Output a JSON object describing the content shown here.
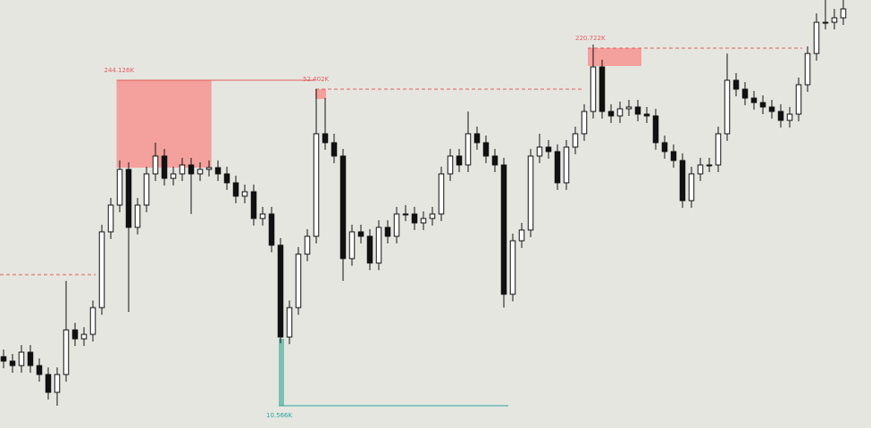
{
  "chart_data": {
    "type": "candlestick",
    "xlim": [
      -0.4,
      97.1
    ],
    "ylim": [
      0,
      480
    ],
    "open": [
      80,
      75,
      70,
      85,
      70,
      60,
      40,
      60,
      110,
      100,
      105,
      135,
      220,
      250,
      290,
      225,
      250,
      285,
      305,
      280,
      285,
      295,
      285,
      290,
      292,
      285,
      275,
      260,
      265,
      235,
      240,
      205,
      102,
      135,
      195,
      215,
      330,
      320,
      305,
      190,
      220,
      215,
      185,
      225,
      215,
      240,
      240,
      230,
      235,
      240,
      285,
      305,
      295,
      330,
      320,
      305,
      295,
      150,
      210,
      222,
      305,
      315,
      310,
      275,
      315,
      330,
      355,
      405,
      355,
      350,
      358,
      360,
      352,
      350,
      320,
      310,
      300,
      255,
      285,
      295,
      295,
      330,
      390,
      380,
      370,
      365,
      360,
      355,
      345,
      352,
      385,
      420,
      455,
      455,
      460
    ],
    "high": [
      88,
      83,
      93,
      93,
      78,
      68,
      68,
      165,
      118,
      113,
      143,
      228,
      258,
      300,
      298,
      258,
      293,
      320,
      313,
      293,
      303,
      303,
      298,
      300,
      300,
      293,
      283,
      273,
      273,
      248,
      248,
      213,
      143,
      203,
      223,
      380,
      370,
      330,
      313,
      228,
      228,
      223,
      233,
      233,
      248,
      250,
      248,
      243,
      248,
      293,
      313,
      313,
      355,
      338,
      328,
      313,
      303,
      218,
      230,
      313,
      330,
      323,
      318,
      323,
      338,
      363,
      430,
      413,
      363,
      366,
      368,
      368,
      360,
      358,
      328,
      318,
      308,
      293,
      303,
      303,
      338,
      420,
      398,
      388,
      378,
      373,
      368,
      363,
      360,
      393,
      428,
      465,
      480,
      470,
      480
    ],
    "low": [
      67,
      62,
      62,
      62,
      52,
      32,
      25,
      52,
      92,
      92,
      97,
      127,
      212,
      242,
      130,
      217,
      242,
      277,
      272,
      272,
      277,
      240,
      277,
      282,
      277,
      267,
      252,
      252,
      227,
      227,
      197,
      95,
      94,
      127,
      187,
      207,
      312,
      297,
      165,
      182,
      207,
      177,
      177,
      207,
      207,
      232,
      222,
      222,
      227,
      232,
      277,
      287,
      287,
      312,
      297,
      287,
      135,
      142,
      202,
      214,
      297,
      302,
      267,
      267,
      307,
      322,
      347,
      347,
      342,
      342,
      350,
      344,
      342,
      312,
      302,
      292,
      247,
      247,
      277,
      287,
      287,
      322,
      372,
      362,
      357,
      352,
      347,
      337,
      337,
      344,
      377,
      412,
      447,
      447,
      452
    ],
    "close": [
      75,
      70,
      85,
      70,
      60,
      40,
      60,
      110,
      100,
      105,
      135,
      220,
      250,
      290,
      225,
      250,
      285,
      305,
      280,
      285,
      295,
      285,
      290,
      292,
      285,
      275,
      260,
      265,
      235,
      240,
      205,
      102,
      135,
      195,
      215,
      330,
      320,
      305,
      190,
      220,
      215,
      185,
      225,
      215,
      240,
      240,
      230,
      235,
      240,
      285,
      305,
      295,
      330,
      320,
      305,
      295,
      150,
      210,
      222,
      305,
      315,
      310,
      275,
      315,
      330,
      355,
      405,
      355,
      350,
      358,
      360,
      352,
      350,
      320,
      310,
      300,
      255,
      285,
      295,
      295,
      330,
      390,
      380,
      370,
      365,
      360,
      355,
      345,
      352,
      385,
      420,
      455,
      455,
      460,
      470
    ],
    "zones": [
      {
        "label": "244.126K",
        "x0": 12.65,
        "x1": 23.27,
        "y0": 292,
        "y1": 390,
        "line_end": 34.8,
        "line_style": "solid",
        "color": "#f4a09c",
        "line_color": "#e25c5c"
      },
      {
        "label": "52.402K",
        "x0": 34.9,
        "x1": 36.1,
        "y0": 369,
        "y1": 380,
        "line_end": 64.9,
        "line_style": "dashed",
        "color": "#f4a09c",
        "line_color": "#e25c5c"
      },
      {
        "label": "220.722K",
        "x0": 65.4,
        "x1": 71.4,
        "y0": 406,
        "y1": 426,
        "line_end": 89.4,
        "line_style": "dashed",
        "color": "#f4a09c",
        "line_color": "#e25c5c"
      },
      {
        "label": "10.566K",
        "x0": 30.8,
        "x1": 31.4,
        "y0": 25,
        "y1": 100,
        "line_end": 56.5,
        "line_style": "solid",
        "color": "#7dbfb3",
        "line_color": "#26a69a"
      }
    ],
    "levels": [
      {
        "y": 172,
        "x0": -0.4,
        "x1": 10.3,
        "style": "dashed",
        "color": "#e25c5c"
      }
    ]
  }
}
